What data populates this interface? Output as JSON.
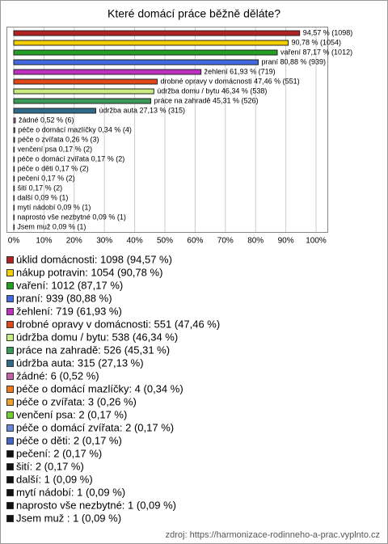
{
  "chart_data": {
    "type": "bar",
    "orientation": "horizontal",
    "title": "Které domácí práce běžně děláte?",
    "categories": [
      "úklid domácnosti: 1098 (94,57 %)",
      "nákup potravin: 1054 (90,78 %)",
      "vaření: 1012 (87,17 %)",
      "praní: 939 (80,88 %)",
      "žehlení: 719 (61,93 %)",
      "drobné opravy v domácnosti: 551 (47,46 %)",
      "údržba domu / bytu: 538 (46,34 %)",
      "práce na zahradě: 526 (45,31 %)",
      "údržba auta: 315 (27,13 %)",
      "žádné: 6 (0,52 %)",
      "péče o domácí mazlíčky: 4 (0,34 %)",
      "péče o zvířata: 3 (0,26 %)",
      "venčení psa: 2 (0,17 %)",
      "péče o domácí zvířata: 2 (0,17 %)",
      "péče o děti: 2 (0,17 %)",
      "pečení: 2 (0,17 %)",
      "šití: 2 (0,17 %)",
      "další: 1 (0,09 %)",
      "mytí nádobí: 1 (0,09 %)",
      "naprosto vše nezbytné: 1 (0,09 %)",
      "Jsem muž : 1 (0,09 %)"
    ],
    "values": [
      94.57,
      90.78,
      87.17,
      80.88,
      61.93,
      47.46,
      46.34,
      45.31,
      27.13,
      0.52,
      0.34,
      0.26,
      0.17,
      0.17,
      0.17,
      0.17,
      0.17,
      0.09,
      0.09,
      0.09,
      0.09
    ],
    "value_labels": [
      "94,57 % (1098)",
      "90,78 % (1054)",
      "vaření 87,17 % (1012)",
      "praní 80,88 % (939)",
      "žehlení 61,93 % (719)",
      "drobné opravy v domácnosti 47,46 % (551)",
      "údržba domu / bytu 46,34 % (538)",
      "práce na zahradě 45,31 % (526)",
      "údržba auta 27,13 % (315)",
      "žádné 0,52 % (6)",
      "péče o domácí mazlíčky 0,34 % (4)",
      "péče o zvířata 0,26 % (3)",
      "venčení psa 0,17 % (2)",
      "péče o domácí zvířata 0,17 % (2)",
      "péče o děti 0,17 % (2)",
      "pečení 0,17 % (2)",
      "šití 0,17 % (2)",
      "další 0,09 % (1)",
      "mytí nádobí 0,09 % (1)",
      "naprosto vše nezbytné 0,09 % (1)",
      "Jsem muž 0,09 % (1)"
    ],
    "colors": [
      "#b22222",
      "#f5d000",
      "#22a022",
      "#4169e1",
      "#c030c0",
      "#e04818",
      "#c8ec80",
      "#3a9a5a",
      "#2f6a8a",
      "#c060a8",
      "#f07818",
      "#f0a030",
      "#70d030",
      "#6a86d8",
      "#4464c8",
      "#111111",
      "#111111",
      "#111111",
      "#111111",
      "#111111",
      "#111111"
    ],
    "xlim": [
      0,
      100
    ],
    "xticks": [
      {
        "value": 0,
        "label": "0%"
      },
      {
        "value": 10,
        "label": "10%"
      },
      {
        "value": 20,
        "label": "20%"
      },
      {
        "value": 30,
        "label": "30%"
      },
      {
        "value": 40,
        "label": "40%"
      },
      {
        "value": 50,
        "label": "50%"
      },
      {
        "value": 60,
        "label": "60%"
      },
      {
        "value": 70,
        "label": "70%"
      },
      {
        "value": 80,
        "label": "80%"
      },
      {
        "value": 90,
        "label": "90%"
      },
      {
        "value": 100,
        "label": "100%"
      }
    ],
    "grid": true,
    "source": "zdroj: https://harmonizace-rodinneho-a-prac.vyplnto.cz"
  }
}
